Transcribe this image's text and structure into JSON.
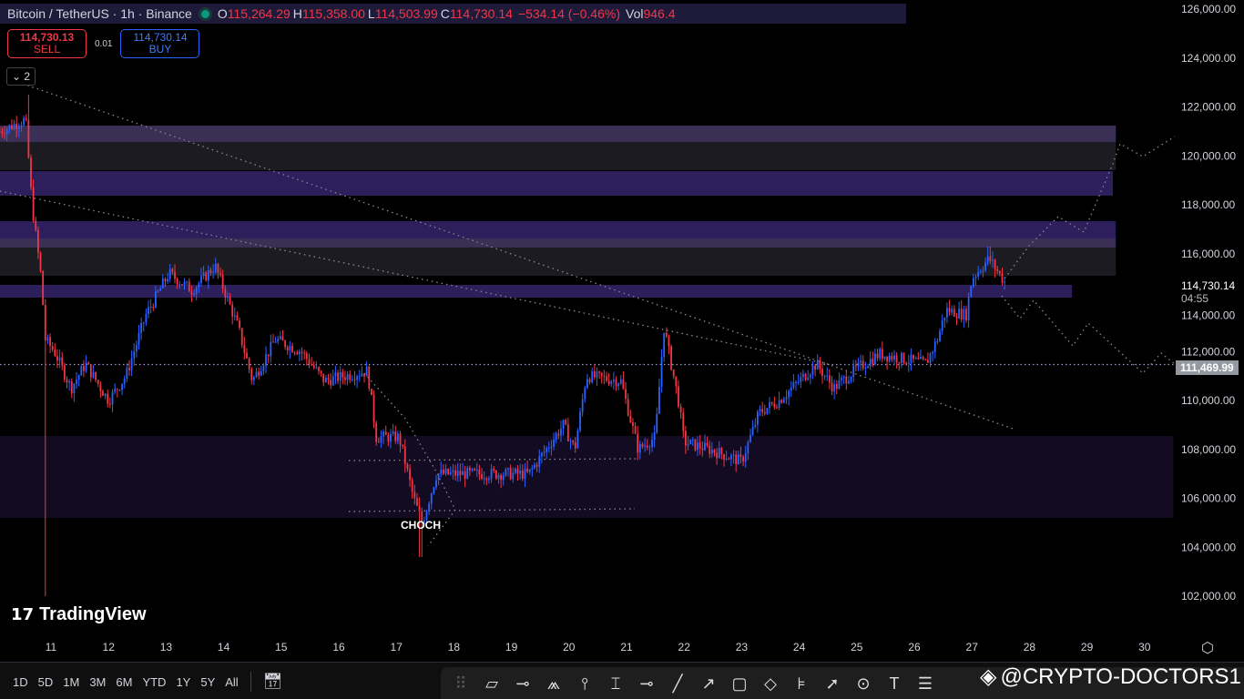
{
  "legend": {
    "symbol": "Bitcoin / TetherUS · 1h · Binance",
    "open_label": "O",
    "open": "115,264.29",
    "high_label": "H",
    "high": "115,358.00",
    "low_label": "L",
    "low": "114,503.99",
    "close_label": "C",
    "close": "114,730.14",
    "change": "−534.14 (−0.46%)",
    "vol_label": "Vol",
    "vol": "946.4"
  },
  "trade": {
    "sell_price": "114,730.13",
    "sell_label": "SELL",
    "spread": "0.01",
    "buy_price": "114,730.14",
    "buy_label": "BUY"
  },
  "collapse_label": "2",
  "brand": "TradingView",
  "price_tags": {
    "last": "114,730.14",
    "countdown": "04:55",
    "crosshair": "111,469.99"
  },
  "ranges": [
    "1D",
    "5D",
    "1M",
    "3M",
    "6M",
    "YTD",
    "1Y",
    "5Y",
    "All"
  ],
  "watermark": "@CRYPTO-DOCTORS1",
  "colors": {
    "up": "#2962ff",
    "down": "#f23645",
    "zone_purple": "#2d1e5c",
    "zone_gray": "#1c1b22",
    "zone_deep": "#130b22",
    "accent": "#089981"
  },
  "chart_data": {
    "type": "candlestick",
    "title": "Bitcoin / TetherUS · 1h · Binance",
    "ylim": [
      101000,
      126500
    ],
    "y_ticks": [
      "126,000.00",
      "124,000.00",
      "122,000.00",
      "120,000.00",
      "118,000.00",
      "116,000.00",
      "114,000.00",
      "112,000.00",
      "110,000.00",
      "108,000.00",
      "106,000.00",
      "104,000.00",
      "102,000.00"
    ],
    "y_tick_values": [
      126000,
      124000,
      122000,
      120000,
      118000,
      116000,
      114000,
      112000,
      110000,
      108000,
      106000,
      104000,
      102000
    ],
    "x_ticks": [
      "11",
      "12",
      "13",
      "14",
      "15",
      "16",
      "17",
      "18",
      "19",
      "20",
      "21",
      "22",
      "23",
      "24",
      "25",
      "26",
      "27",
      "28",
      "29",
      "30"
    ],
    "close_path": [
      [
        10.11,
        121000
      ],
      [
        10.56,
        121500
      ],
      [
        10.67,
        118000
      ],
      [
        10.83,
        115000
      ],
      [
        10.9,
        112500
      ],
      [
        11.06,
        112000
      ],
      [
        11.35,
        110500
      ],
      [
        11.6,
        111500
      ],
      [
        12.0,
        110000
      ],
      [
        12.3,
        111000
      ],
      [
        12.65,
        113500
      ],
      [
        13.05,
        115200
      ],
      [
        13.45,
        114500
      ],
      [
        13.85,
        115500
      ],
      [
        14.25,
        113000
      ],
      [
        14.5,
        110800
      ],
      [
        14.9,
        112500
      ],
      [
        15.35,
        112000
      ],
      [
        15.75,
        110800
      ],
      [
        16.1,
        111000
      ],
      [
        16.5,
        111200
      ],
      [
        16.65,
        108500
      ],
      [
        17.05,
        108500
      ],
      [
        17.3,
        106000
      ],
      [
        17.45,
        105000
      ],
      [
        17.7,
        107000
      ],
      [
        18.35,
        107000
      ],
      [
        19.3,
        107000
      ],
      [
        19.6,
        108000
      ],
      [
        19.9,
        109000
      ],
      [
        20.1,
        108000
      ],
      [
        20.3,
        111000
      ],
      [
        20.9,
        110800
      ],
      [
        21.2,
        108000
      ],
      [
        21.5,
        108500
      ],
      [
        21.65,
        113000
      ],
      [
        21.9,
        110000
      ],
      [
        22.0,
        108300
      ],
      [
        22.45,
        108000
      ],
      [
        23.0,
        107500
      ],
      [
        23.3,
        109500
      ],
      [
        23.65,
        110000
      ],
      [
        24.0,
        110800
      ],
      [
        24.3,
        111500
      ],
      [
        24.6,
        110500
      ],
      [
        25.0,
        111300
      ],
      [
        25.4,
        111900
      ],
      [
        26.2,
        111500
      ],
      [
        26.4,
        112500
      ],
      [
        26.55,
        113700
      ],
      [
        26.9,
        113500
      ],
      [
        27.0,
        115000
      ],
      [
        27.3,
        115800
      ],
      [
        27.6,
        114730.14
      ]
    ],
    "extremes": {
      "low_wick": 102000,
      "low_17": 103600,
      "high_10": 122500,
      "high_27": 116300
    },
    "zones": [
      {
        "from": 121237,
        "to": 120567,
        "kind": "purple",
        "end_day": 29.5
      },
      {
        "from": 120567,
        "to": 119414,
        "kind": "gray",
        "end_day": 29.5
      },
      {
        "from": 119377,
        "to": 118372,
        "kind": "purple",
        "end_day": 29.45
      },
      {
        "from": 117330,
        "to": 116623,
        "kind": "purple",
        "end_day": 29.5
      },
      {
        "from": 116623,
        "to": 116252,
        "kind": "purple_light",
        "end_day": 29.5
      },
      {
        "from": 116252,
        "to": 115098,
        "kind": "gray",
        "end_day": 29.5
      },
      {
        "from": 114726,
        "to": 114204,
        "kind": "purple",
        "end_day": 28.74
      },
      {
        "from": 108550,
        "to": 105200,
        "kind": "deep",
        "end_day": 30.5
      }
    ],
    "horizontal_line": 111469.99,
    "annotation": "CHOCH",
    "grid": false
  }
}
